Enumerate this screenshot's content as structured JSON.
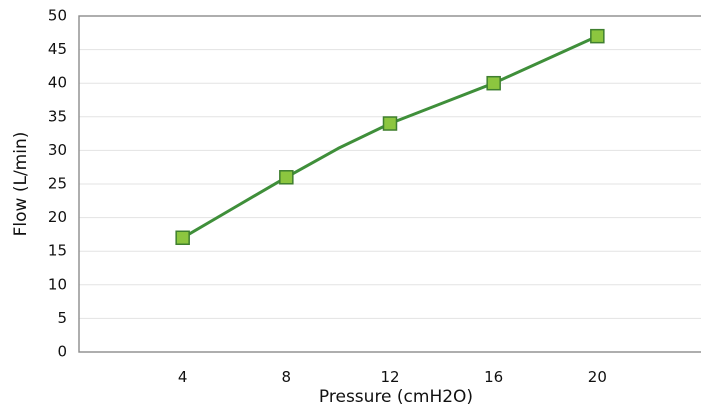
{
  "chart_data": {
    "type": "line",
    "title": "",
    "xlabel": "Pressure (cmH2O)",
    "ylabel": "Flow (L/min)",
    "x": [
      4,
      8,
      12,
      16,
      20
    ],
    "x_tick_labels": [
      "4",
      "8",
      "12",
      "16",
      "20"
    ],
    "y_tick_labels": [
      "0",
      "5",
      "10",
      "15",
      "20",
      "25",
      "30",
      "35",
      "40",
      "45",
      "50"
    ],
    "ylim": [
      0,
      50
    ],
    "xlim": [
      0,
      24
    ],
    "grid": true,
    "series": [
      {
        "curve": [
          [
            4,
            17
          ],
          [
            6,
            21.5
          ],
          [
            8,
            26
          ],
          [
            10,
            30.3
          ],
          [
            12,
            34
          ],
          [
            14,
            37
          ],
          [
            16,
            40
          ],
          [
            18,
            43.5
          ],
          [
            20,
            47
          ]
        ],
        "markers": [
          [
            4,
            17
          ],
          [
            8,
            26
          ],
          [
            12,
            34
          ],
          [
            16,
            40
          ],
          [
            20,
            47
          ]
        ],
        "line_color": "#3f8f3a",
        "marker_fill": "#8cc63f",
        "marker_stroke": "#3f7f2f"
      }
    ]
  }
}
